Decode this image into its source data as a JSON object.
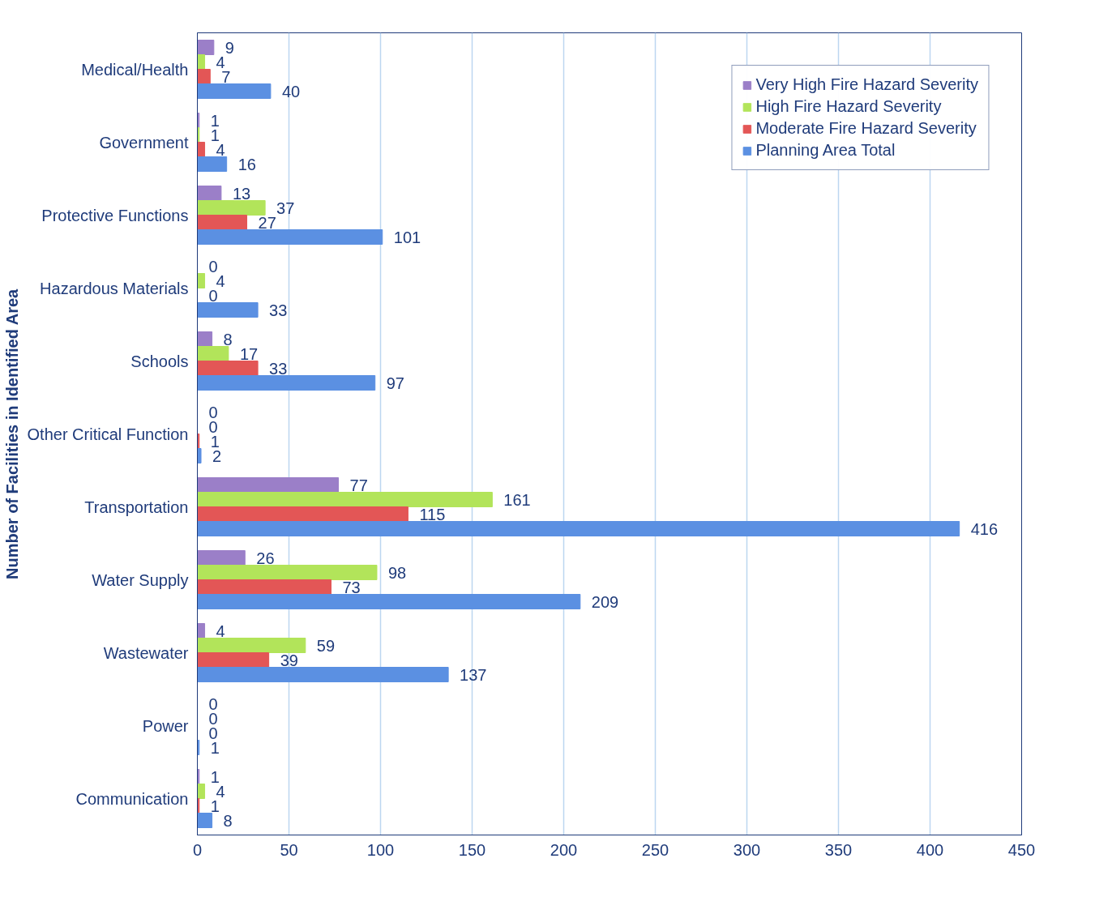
{
  "chart_data": {
    "type": "bar",
    "orientation": "horizontal",
    "ylabel": "Number of Facilities in Identified Area",
    "categories": [
      "Medical/Health",
      "Government",
      "Protective Functions",
      "Hazardous Materials",
      "Schools",
      "Other Critical Function",
      "Transportation",
      "Water Supply",
      "Wastewater",
      "Power",
      "Communication"
    ],
    "series": [
      {
        "name": "Very High Fire Hazard Severity",
        "color": "#9b7fc8",
        "values": [
          9,
          1,
          13,
          0,
          8,
          0,
          77,
          26,
          4,
          0,
          1
        ]
      },
      {
        "name": "High Fire Hazard Severity",
        "color": "#b2e45a",
        "values": [
          4,
          1,
          37,
          4,
          17,
          0,
          161,
          98,
          59,
          0,
          4
        ]
      },
      {
        "name": "Moderate Fire Hazard Severity",
        "color": "#e35656",
        "values": [
          7,
          4,
          27,
          0,
          33,
          1,
          115,
          73,
          39,
          0,
          1
        ]
      },
      {
        "name": "Planning Area Total",
        "color": "#5b90e2",
        "values": [
          40,
          16,
          101,
          33,
          97,
          2,
          416,
          209,
          137,
          1,
          8
        ]
      }
    ],
    "xlim": [
      0,
      450
    ],
    "xticks": [
      0,
      50,
      100,
      150,
      200,
      250,
      300,
      350,
      400,
      450
    ],
    "grid": "x",
    "legend": "top right",
    "data_labels": true
  }
}
